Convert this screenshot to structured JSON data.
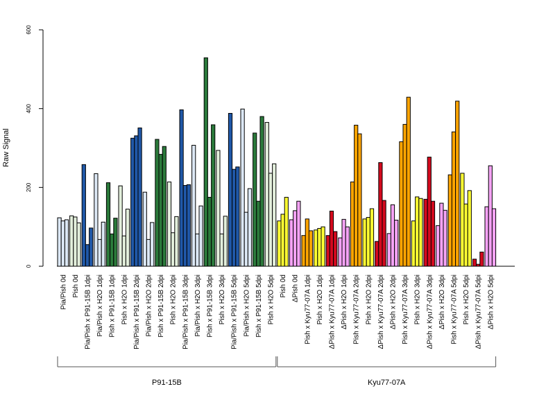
{
  "chart_data": {
    "type": "bar",
    "ylabel": "Raw Signal",
    "ylim": [
      0,
      600
    ],
    "yticks": [
      0,
      200,
      400,
      600
    ],
    "grid": false,
    "categories": [
      "Pia/Pish 0d",
      "Pish 0d",
      "Pia/Pish x P91-15B 1dpi",
      "Pia/Pish x H2O 1dpi",
      "Pish x P91-15B 1dpi",
      "Pish x H2O 1dpi",
      "Pia/Pish x P91-15B 2dpi",
      "Pia/Pish x H2O 2dpi",
      "Pish x P91-15B 2dpi",
      "Pish x H2O 2dpi",
      "Pia/Pish x P91-15B 3dpi",
      "Pia/Pish x H2O 3dpi",
      "Pish x P91-15B 3dpi",
      "Pish x H2O 3dpi",
      "Pia/Pish x P91-15B 5dpi",
      "Pia/Pish x H2O 5dpi",
      "Pish x P91-15B 5dpi",
      "Pish x H2O 5dpi",
      "Pish 0d",
      "ΔPish 0d",
      "Pish x Kyu77-07A 1dpi",
      "Pish x H2O 1dpi",
      "ΔPish x Kyu77-07A 1dpi",
      "ΔPish x H2O 1dpi",
      "Pish x Kyu77-07A 2dpi",
      "Pish x H2O 2dpi",
      "ΔPish x Kyu77-07A 2dpi",
      "ΔPish x H2O 2dpi",
      "Pish x Kyu77-07A 3dpi",
      "Pish x H2O 3dpi",
      "ΔPish x Kyu77-07A 3dpi",
      "ΔPish x H2O 3dpi",
      "Pish x Kyu77-07A 5dpi",
      "Pish x H2O 5dpi",
      "ΔPish x Kyu77-07A 5dpi",
      "ΔPish x H2O 5dpi"
    ],
    "colors": [
      "#dce8f5",
      "#e3efdc",
      "#2058a8",
      "#dce8f5",
      "#2b7a3b",
      "#e3efdc",
      "#2058a8",
      "#dce8f5",
      "#2b7a3b",
      "#e3efdc",
      "#2058a8",
      "#dce8f5",
      "#2b7a3b",
      "#e3efdc",
      "#2058a8",
      "#dce8f5",
      "#2b7a3b",
      "#e3efdc",
      "#ffff33",
      "#f5a3f5",
      "#ffa500",
      "#ffff33",
      "#d40a1e",
      "#f5a3f5",
      "#ffa500",
      "#ffff33",
      "#d40a1e",
      "#f5a3f5",
      "#ffa500",
      "#ffff33",
      "#d40a1e",
      "#f5a3f5",
      "#ffa500",
      "#ffff33",
      "#d40a1e",
      "#f5a3f5"
    ],
    "values": [
      [
        123,
        115,
        118
      ],
      [
        128,
        125,
        110
      ],
      [
        258,
        55,
        97
      ],
      [
        235,
        68,
        112
      ],
      [
        212,
        82,
        122
      ],
      [
        204,
        77,
        145
      ],
      [
        325,
        331,
        351
      ],
      [
        188,
        68,
        111
      ],
      [
        322,
        284,
        304
      ],
      [
        214,
        85,
        126
      ],
      [
        397,
        205,
        207
      ],
      [
        307,
        82,
        153
      ],
      [
        529,
        175,
        359
      ],
      [
        294,
        82,
        127
      ],
      [
        388,
        246,
        252
      ],
      [
        399,
        137,
        197
      ],
      [
        338,
        165,
        380
      ],
      [
        365,
        236,
        260
      ],
      [
        115,
        132,
        175
      ],
      [
        118,
        141,
        165
      ],
      [
        78,
        120,
        90
      ],
      [
        92,
        96,
        100
      ],
      [
        78,
        140,
        88
      ],
      [
        72,
        119,
        100
      ],
      [
        214,
        358,
        336
      ],
      [
        120,
        124,
        146
      ],
      [
        63,
        263,
        167
      ],
      [
        83,
        156,
        117
      ],
      [
        316,
        360,
        429
      ],
      [
        115,
        176,
        172
      ],
      [
        170,
        277,
        165
      ],
      [
        103,
        160,
        142
      ],
      [
        232,
        341,
        419
      ],
      [
        236,
        158,
        192
      ],
      [
        18,
        5,
        36
      ],
      [
        151,
        255,
        146
      ]
    ],
    "groups": [
      {
        "label": "P91-15B",
        "start": 0,
        "end": 17
      },
      {
        "label": "Kyu77-07A",
        "start": 18,
        "end": 35
      }
    ]
  }
}
